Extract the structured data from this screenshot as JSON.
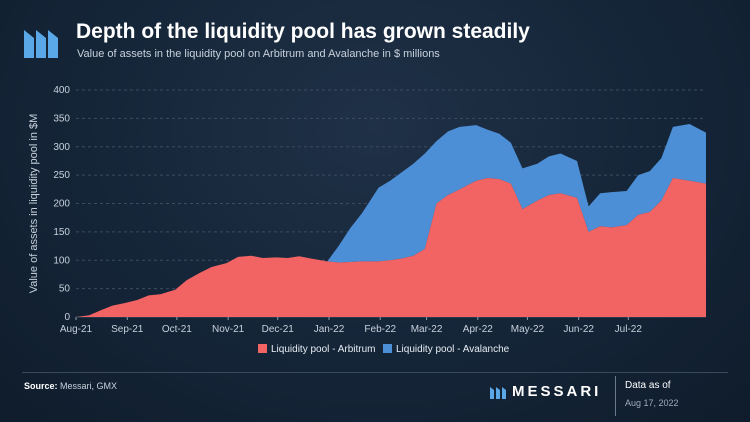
{
  "header": {
    "title": "Depth of the liquidity pool has grown steadily",
    "subtitle": "Value of assets in the liquidity pool on Arbitrum and Avalanche in $ millions"
  },
  "footer": {
    "source_label": "Source:",
    "source_text": "Messari, GMX",
    "brand": "MESSARI",
    "asof_label": "Data as of",
    "asof_date": "Aug 17, 2022"
  },
  "colors": {
    "arbitrum": "#f26464",
    "avalanche": "#4d8fd6",
    "background": "#162638",
    "grid": "#3b4c60"
  },
  "chart_data": {
    "type": "area",
    "stacked": true,
    "title": "Depth of the liquidity pool has grown steadily",
    "subtitle": "Value of assets in the liquidity pool on Arbitrum and Avalanche in $ millions",
    "xlabel": "",
    "ylabel": "Value of assets in liquidity pool in $M",
    "ylim": [
      0,
      400
    ],
    "yticks": [
      0,
      50,
      100,
      150,
      200,
      250,
      300,
      350,
      400
    ],
    "xticks": [
      "Aug-21",
      "Sep-21",
      "Oct-21",
      "Nov-21",
      "Dec-21",
      "Jan-22",
      "Feb-22",
      "Mar-22",
      "Apr-22",
      "May-22",
      "Jun-22",
      "Jul-22"
    ],
    "xlim": [
      "2021-08-01",
      "2022-08-17"
    ],
    "grid": true,
    "legend_position": "bottom",
    "series": [
      {
        "name": "Liquidity pool - Arbitrum",
        "color": "#f26464",
        "points": [
          [
            "2021-08-01",
            0
          ],
          [
            "2021-08-09",
            3
          ],
          [
            "2021-08-16",
            12
          ],
          [
            "2021-08-23",
            20
          ],
          [
            "2021-08-31",
            25
          ],
          [
            "2021-09-07",
            30
          ],
          [
            "2021-09-14",
            38
          ],
          [
            "2021-09-21",
            40
          ],
          [
            "2021-09-30",
            48
          ],
          [
            "2021-10-07",
            65
          ],
          [
            "2021-10-15",
            78
          ],
          [
            "2021-10-22",
            88
          ],
          [
            "2021-10-31",
            95
          ],
          [
            "2021-11-07",
            106
          ],
          [
            "2021-11-15",
            108
          ],
          [
            "2021-11-22",
            104
          ],
          [
            "2021-11-30",
            105
          ],
          [
            "2021-12-07",
            104
          ],
          [
            "2021-12-14",
            107
          ],
          [
            "2021-12-21",
            103
          ],
          [
            "2021-12-31",
            98
          ],
          [
            "2022-01-07",
            96
          ],
          [
            "2022-01-14",
            97
          ],
          [
            "2022-01-21",
            98
          ],
          [
            "2022-01-31",
            98
          ],
          [
            "2022-02-07",
            100
          ],
          [
            "2022-02-14",
            103
          ],
          [
            "2022-02-21",
            108
          ],
          [
            "2022-02-28",
            120
          ],
          [
            "2022-03-07",
            200
          ],
          [
            "2022-03-14",
            215
          ],
          [
            "2022-03-21",
            225
          ],
          [
            "2022-03-31",
            240
          ],
          [
            "2022-04-07",
            245
          ],
          [
            "2022-04-14",
            243
          ],
          [
            "2022-04-21",
            235
          ],
          [
            "2022-04-28",
            190
          ],
          [
            "2022-05-07",
            205
          ],
          [
            "2022-05-14",
            215
          ],
          [
            "2022-05-21",
            218
          ],
          [
            "2022-05-31",
            210
          ],
          [
            "2022-06-07",
            150
          ],
          [
            "2022-06-14",
            160
          ],
          [
            "2022-06-21",
            158
          ],
          [
            "2022-06-30",
            162
          ],
          [
            "2022-07-07",
            180
          ],
          [
            "2022-07-14",
            185
          ],
          [
            "2022-07-21",
            205
          ],
          [
            "2022-07-28",
            245
          ],
          [
            "2022-08-07",
            240
          ],
          [
            "2022-08-17",
            235
          ]
        ]
      },
      {
        "name": "Liquidity pool - Avalanche",
        "color": "#4d8fd6",
        "points": [
          [
            "2021-08-01",
            0
          ],
          [
            "2021-12-31",
            0
          ],
          [
            "2022-01-07",
            30
          ],
          [
            "2022-01-14",
            60
          ],
          [
            "2022-01-21",
            85
          ],
          [
            "2022-01-31",
            130
          ],
          [
            "2022-02-07",
            140
          ],
          [
            "2022-02-14",
            152
          ],
          [
            "2022-02-21",
            162
          ],
          [
            "2022-02-28",
            168
          ],
          [
            "2022-03-07",
            110
          ],
          [
            "2022-03-14",
            112
          ],
          [
            "2022-03-21",
            110
          ],
          [
            "2022-03-31",
            98
          ],
          [
            "2022-04-07",
            85
          ],
          [
            "2022-04-14",
            80
          ],
          [
            "2022-04-21",
            72
          ],
          [
            "2022-04-28",
            72
          ],
          [
            "2022-05-07",
            65
          ],
          [
            "2022-05-14",
            68
          ],
          [
            "2022-05-21",
            70
          ],
          [
            "2022-05-31",
            65
          ],
          [
            "2022-06-07",
            45
          ],
          [
            "2022-06-14",
            58
          ],
          [
            "2022-06-21",
            62
          ],
          [
            "2022-06-30",
            60
          ],
          [
            "2022-07-07",
            70
          ],
          [
            "2022-07-14",
            72
          ],
          [
            "2022-07-21",
            75
          ],
          [
            "2022-07-28",
            90
          ],
          [
            "2022-08-07",
            100
          ],
          [
            "2022-08-17",
            90
          ]
        ]
      }
    ]
  }
}
